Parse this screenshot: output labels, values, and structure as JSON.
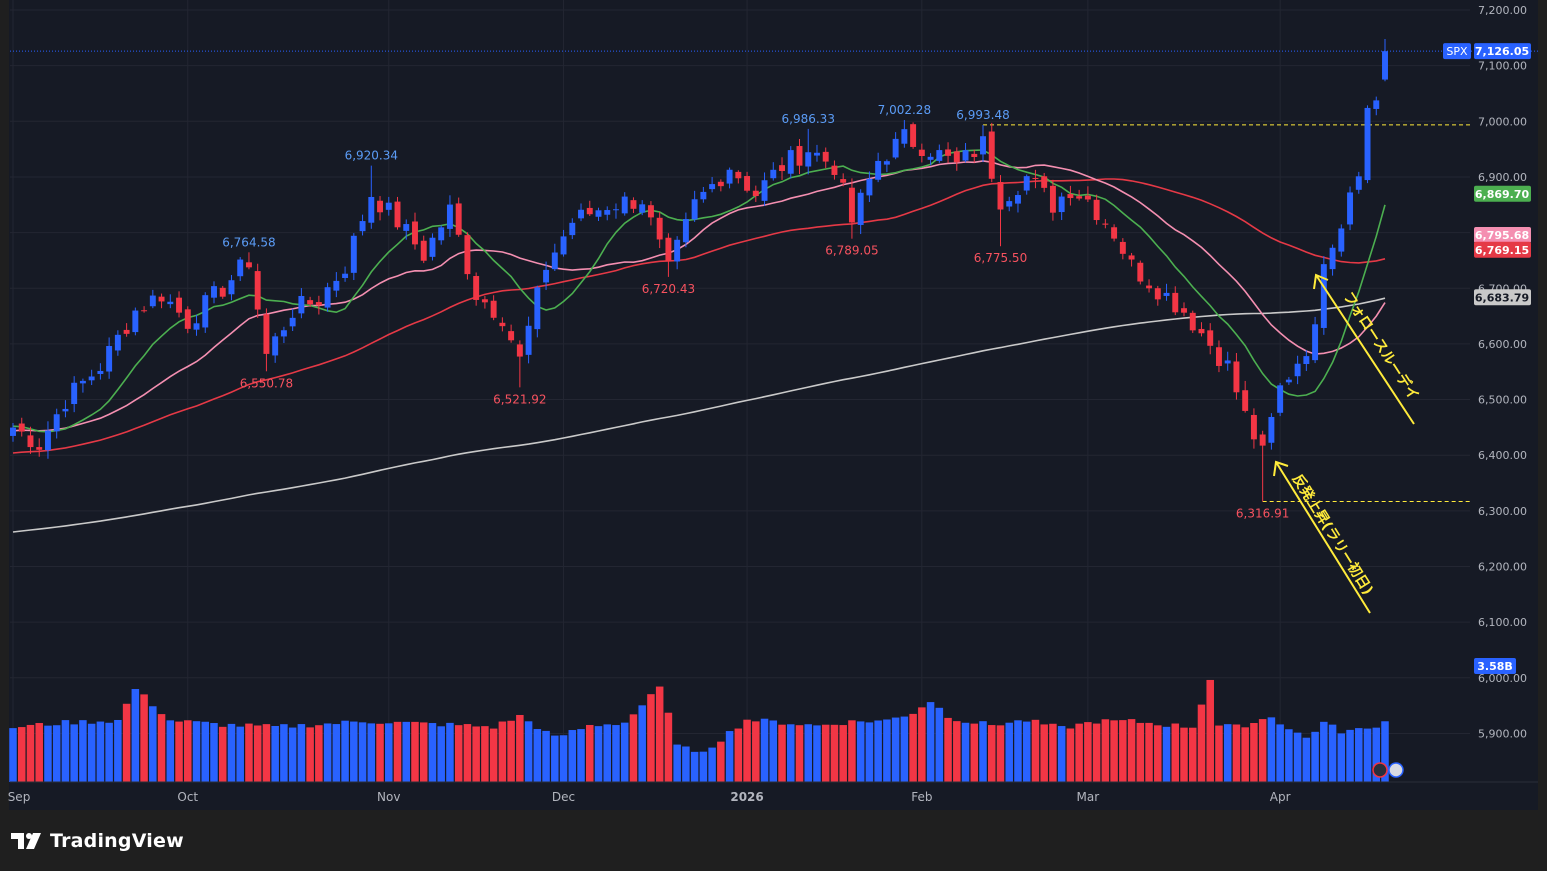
{
  "app": {
    "brand": "TradingView"
  },
  "colors": {
    "background": "#161a25",
    "frame": "#1f1f1f",
    "up": "#2962ff",
    "down": "#f23645",
    "grid": "#232632",
    "axis_text": "#b2b5be",
    "ma_green": "#4caf50",
    "ma_pink": "#f48fb1",
    "ma_red": "#e53946",
    "ma_white": "#c9c9c9",
    "annotation": "#ffeb3b",
    "label_high": "#5b9cf6",
    "label_low": "#f7525f"
  },
  "chart_data": {
    "type": "candlestick",
    "symbol": "SPX",
    "last_price": "7,126.05",
    "volume_label": "3.58B",
    "ylim": [
      5820,
      7220
    ],
    "y_ticks": [
      "7,200.00",
      "7,100.00",
      "7,000.00",
      "6,900.00",
      "6,800.00",
      "6,700.00",
      "6,600.00",
      "6,500.00",
      "6,400.00",
      "6,300.00",
      "6,200.00",
      "6,100.00",
      "6,000.00",
      "5,900.00"
    ],
    "x_labels": [
      {
        "label": "Sep",
        "index": 0
      },
      {
        "label": "Oct",
        "index": 20
      },
      {
        "label": "Nov",
        "index": 43
      },
      {
        "label": "Dec",
        "index": 63
      },
      {
        "label": "2026",
        "index": 84
      },
      {
        "label": "Feb",
        "index": 104
      },
      {
        "label": "Mar",
        "index": 123
      },
      {
        "label": "Apr",
        "index": 145
      }
    ],
    "ma_badges": [
      {
        "label": "6,869.70",
        "color": "#4caf50"
      },
      {
        "label": "6,795.68",
        "color": "#f48fb1"
      },
      {
        "label": "6,769.15",
        "color": "#e53946"
      },
      {
        "label": "6,683.79",
        "color": "#c9c9c9"
      }
    ],
    "annotations_high": [
      {
        "label": "6,764.58",
        "index": 27,
        "value": 6764.58
      },
      {
        "label": "6,920.34",
        "index": 41,
        "value": 6920.34
      },
      {
        "label": "6,986.33",
        "index": 91,
        "value": 6986.33
      },
      {
        "label": "7,002.28",
        "index": 102,
        "value": 7002.28
      },
      {
        "label": "6,993.48",
        "index": 111,
        "value": 6993.48
      }
    ],
    "annotations_low": [
      {
        "label": "6,550.78",
        "index": 29,
        "value": 6550.78
      },
      {
        "label": "6,521.92",
        "index": 58,
        "value": 6521.92
      },
      {
        "label": "6,720.43",
        "index": 75,
        "value": 6720.43
      },
      {
        "label": "6,789.05",
        "index": 96,
        "value": 6789.05
      },
      {
        "label": "6,775.50",
        "index": 113,
        "value": 6775.5
      },
      {
        "label": "6,316.91",
        "index": 143,
        "value": 6316.91
      }
    ],
    "hlines": [
      {
        "value": 6993.48,
        "from_index": 111
      },
      {
        "value": 6316.91,
        "from_index": 143
      }
    ],
    "text_notes": [
      {
        "text": "反発上昇(ラリー初日)"
      },
      {
        "text": "フォロースルーデイ"
      }
    ],
    "close_anchors": [
      [
        0,
        6450
      ],
      [
        3,
        6420
      ],
      [
        6,
        6500
      ],
      [
        10,
        6560
      ],
      [
        14,
        6660
      ],
      [
        17,
        6690
      ],
      [
        20,
        6640
      ],
      [
        24,
        6700
      ],
      [
        27,
        6750
      ],
      [
        29,
        6580
      ],
      [
        32,
        6660
      ],
      [
        35,
        6680
      ],
      [
        38,
        6740
      ],
      [
        41,
        6870
      ],
      [
        44,
        6820
      ],
      [
        47,
        6760
      ],
      [
        50,
        6840
      ],
      [
        53,
        6690
      ],
      [
        56,
        6650
      ],
      [
        58,
        6570
      ],
      [
        61,
        6740
      ],
      [
        64,
        6820
      ],
      [
        68,
        6850
      ],
      [
        72,
        6860
      ],
      [
        75,
        6730
      ],
      [
        78,
        6850
      ],
      [
        82,
        6920
      ],
      [
        85,
        6870
      ],
      [
        88,
        6920
      ],
      [
        91,
        6950
      ],
      [
        94,
        6920
      ],
      [
        96,
        6820
      ],
      [
        99,
        6930
      ],
      [
        102,
        6970
      ],
      [
        105,
        6950
      ],
      [
        108,
        6920
      ],
      [
        111,
        6960
      ],
      [
        113,
        6860
      ],
      [
        116,
        6900
      ],
      [
        119,
        6850
      ],
      [
        121,
        6880
      ],
      [
        123,
        6860
      ],
      [
        126,
        6800
      ],
      [
        128,
        6740
      ],
      [
        131,
        6700
      ],
      [
        134,
        6660
      ],
      [
        137,
        6600
      ],
      [
        139,
        6560
      ],
      [
        141,
        6470
      ],
      [
        143,
        6400
      ],
      [
        145,
        6520
      ],
      [
        147,
        6570
      ],
      [
        149,
        6620
      ],
      [
        150,
        6760
      ],
      [
        152,
        6820
      ],
      [
        153,
        6880
      ],
      [
        154,
        6920
      ],
      [
        155,
        7020
      ],
      [
        156,
        7040
      ],
      [
        157,
        7126
      ]
    ],
    "volume_anchors": [
      [
        0,
        3.44
      ],
      [
        6,
        3.55
      ],
      [
        12,
        3.6
      ],
      [
        14,
        4.33
      ],
      [
        18,
        3.6
      ],
      [
        24,
        3.5
      ],
      [
        30,
        3.45
      ],
      [
        36,
        3.52
      ],
      [
        40,
        3.58
      ],
      [
        44,
        3.55
      ],
      [
        50,
        3.5
      ],
      [
        55,
        3.45
      ],
      [
        58,
        3.7
      ],
      [
        62,
        3.2
      ],
      [
        66,
        3.48
      ],
      [
        70,
        3.55
      ],
      [
        74,
        4.35
      ],
      [
        76,
        3.1
      ],
      [
        78,
        2.82
      ],
      [
        80,
        3.02
      ],
      [
        84,
        3.62
      ],
      [
        88,
        3.55
      ],
      [
        92,
        3.48
      ],
      [
        96,
        3.57
      ],
      [
        100,
        3.6
      ],
      [
        103,
        3.78
      ],
      [
        105,
        4.05
      ],
      [
        107,
        3.7
      ],
      [
        109,
        3.58
      ],
      [
        112,
        3.5
      ],
      [
        116,
        3.6
      ],
      [
        120,
        3.42
      ],
      [
        124,
        3.58
      ],
      [
        128,
        3.58
      ],
      [
        132,
        3.5
      ],
      [
        135,
        3.45
      ],
      [
        137,
        4.55
      ],
      [
        138,
        3.48
      ],
      [
        140,
        3.45
      ],
      [
        142,
        3.55
      ],
      [
        144,
        3.7
      ],
      [
        146,
        3.4
      ],
      [
        148,
        3.2
      ],
      [
        150,
        3.55
      ],
      [
        152,
        3.35
      ],
      [
        155,
        3.4
      ],
      [
        157,
        3.58
      ]
    ],
    "ma_periods": {
      "green": 10,
      "pink": 21,
      "red": 50,
      "white": 200
    }
  }
}
